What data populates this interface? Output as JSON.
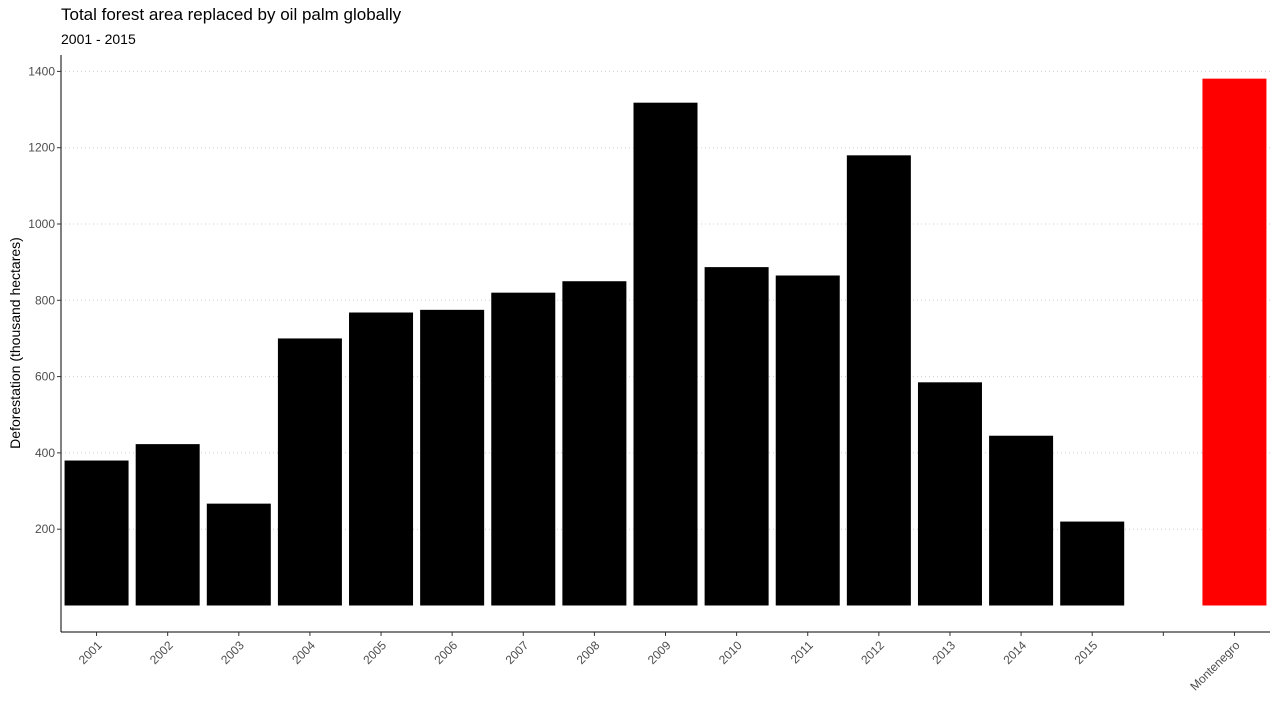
{
  "chart_data": {
    "type": "bar",
    "title": "Total forest area replaced by oil palm globally",
    "subtitle": "2001 - 2015",
    "xlabel": "",
    "ylabel": "Deforestation (thousand hectares)",
    "categories": [
      "2001",
      "2002",
      "2003",
      "2004",
      "2005",
      "2006",
      "2007",
      "2008",
      "2009",
      "2010",
      "2011",
      "2012",
      "2013",
      "2014",
      "2015",
      "",
      "Montenegro"
    ],
    "values": [
      380,
      423,
      267,
      700,
      768,
      775,
      820,
      850,
      1318,
      887,
      865,
      1180,
      585,
      445,
      220,
      null,
      1381
    ],
    "colors": [
      "#000000",
      "#000000",
      "#000000",
      "#000000",
      "#000000",
      "#000000",
      "#000000",
      "#000000",
      "#000000",
      "#000000",
      "#000000",
      "#000000",
      "#000000",
      "#000000",
      "#000000",
      "#000000",
      "#ff0000"
    ],
    "yticks": [
      200,
      400,
      600,
      800,
      1000,
      1200,
      1400
    ],
    "ylim": [
      -70,
      1450
    ],
    "grid": "horizontal-dotted",
    "legend": "none"
  }
}
